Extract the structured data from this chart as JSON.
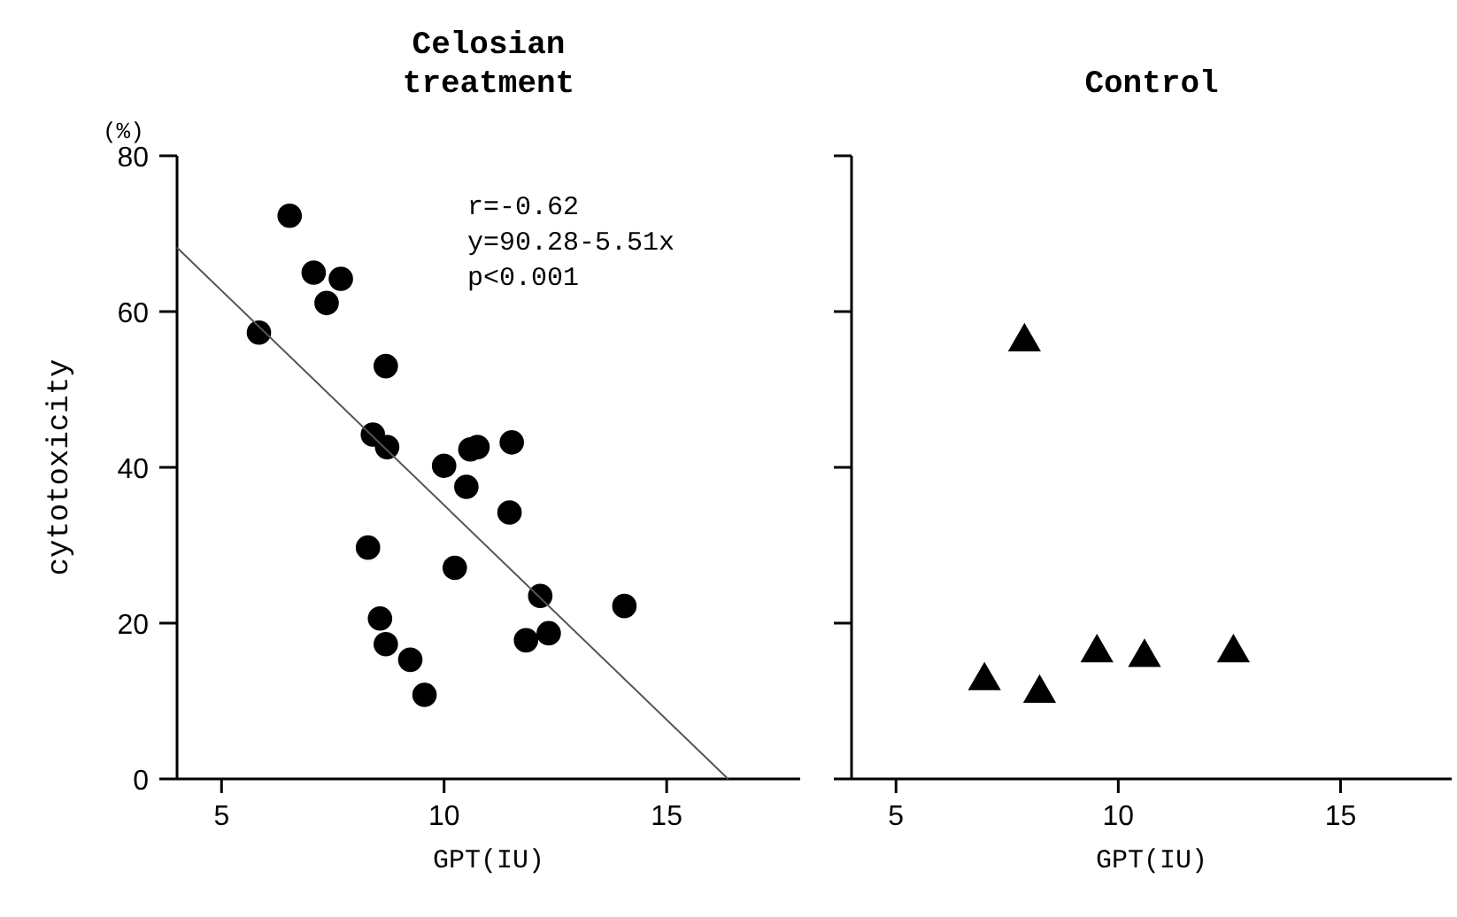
{
  "chart_data": [
    {
      "type": "scatter",
      "title": "Celosian treatment",
      "xlabel": "GPT(IU)",
      "ylabel": "cytotoxicity",
      "annotations": [
        "(%)",
        "r=-0.62",
        "y=90.28-5.51x",
        "p<0.001"
      ],
      "xlim": [
        4,
        18
      ],
      "xticks": [
        5,
        10,
        15
      ],
      "ylim": [
        0,
        80
      ],
      "yticks": [
        0,
        20,
        40,
        60,
        80
      ],
      "grid": false,
      "series": [
        {
          "marker": "circle",
          "color": "#000000",
          "x": [
            5.84,
            6.53,
            7.07,
            7.68,
            7.36,
            8.69,
            8.4,
            8.72,
            10.0,
            10.59,
            10.75,
            10.5,
            11.52,
            11.47,
            8.29,
            10.24,
            12.16,
            14.05,
            8.56,
            8.69,
            11.84,
            12.35,
            9.24,
            9.56
          ],
          "values": [
            57.3,
            72.3,
            65.0,
            64.2,
            61.1,
            53.0,
            44.2,
            42.6,
            40.2,
            42.3,
            42.6,
            37.5,
            43.2,
            34.2,
            29.7,
            27.1,
            23.5,
            22.2,
            20.6,
            17.3,
            17.8,
            18.7,
            15.3,
            10.8
          ]
        },
        {
          "type": "line",
          "marker": "none",
          "line_style": "solid",
          "color": "#555555",
          "x": [
            4,
            16.38
          ],
          "values": [
            68.2,
            0
          ]
        }
      ]
    },
    {
      "type": "scatter",
      "title": "Control",
      "xlabel": "GPT(IU)",
      "xlim": [
        4,
        17.5
      ],
      "xticks": [
        5,
        10,
        15
      ],
      "ylim": [
        0,
        80
      ],
      "yticks": [
        0,
        20,
        40,
        60,
        80
      ],
      "tick_labels": "x",
      "grid": false,
      "series": [
        {
          "marker": "triangle",
          "color": "#000000",
          "x": [
            7.89,
            6.99,
            8.23,
            9.52,
            10.59,
            12.59
          ],
          "values": [
            56.1,
            12.6,
            11.0,
            16.2,
            15.6,
            16.2
          ]
        }
      ]
    }
  ]
}
